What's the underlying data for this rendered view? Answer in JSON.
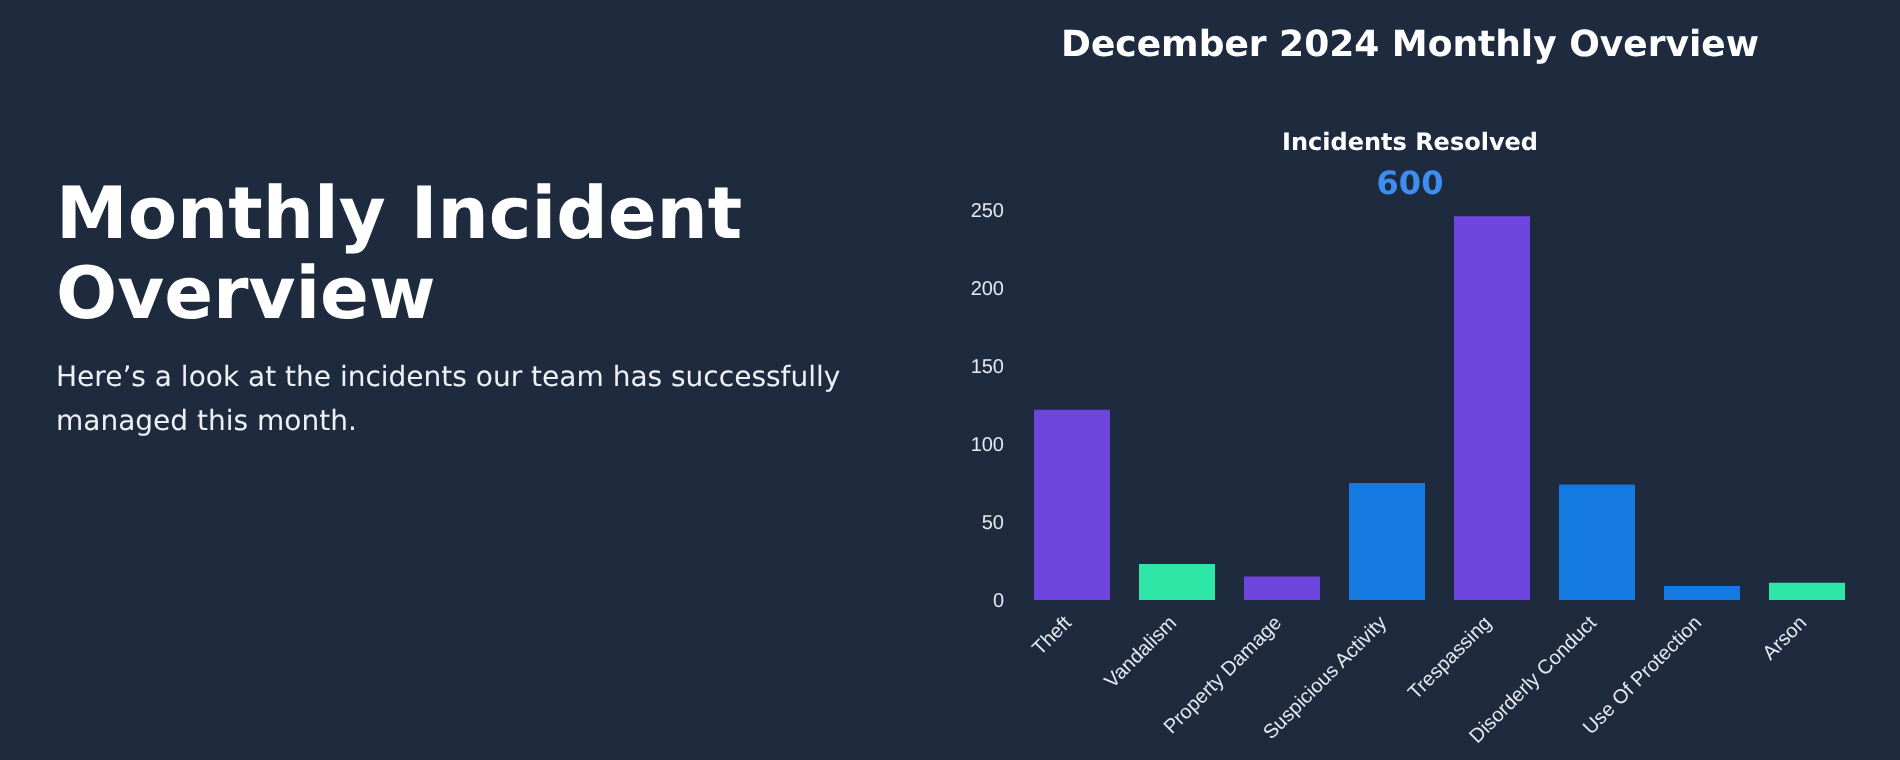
{
  "chart_data": {
    "type": "bar",
    "title": "Monthly Incident Overview",
    "subtitle": "Here’s a look at the incidents our team has successfully managed this month.",
    "annotations": [
      "December 2024 Monthly Overview",
      "Incidents Resolved",
      "600"
    ],
    "categories": [
      "Theft",
      "Vandalism",
      "Property Damage",
      "Suspicious Activity",
      "Trespassing",
      "Disorderly Conduct",
      "Use Of Protection",
      "Arson"
    ],
    "values": [
      122,
      23,
      15,
      75,
      246,
      74,
      9,
      11
    ],
    "colors": [
      "#6f45e0",
      "#2ee6a6",
      "#6f45e0",
      "#1479e0",
      "#6f45e0",
      "#1479e0",
      "#1479e0",
      "#2ee6a6"
    ],
    "ylim": [
      0,
      250
    ],
    "yticks": [
      0,
      50,
      100,
      150,
      200,
      250
    ],
    "grid": false,
    "legend": false
  }
}
